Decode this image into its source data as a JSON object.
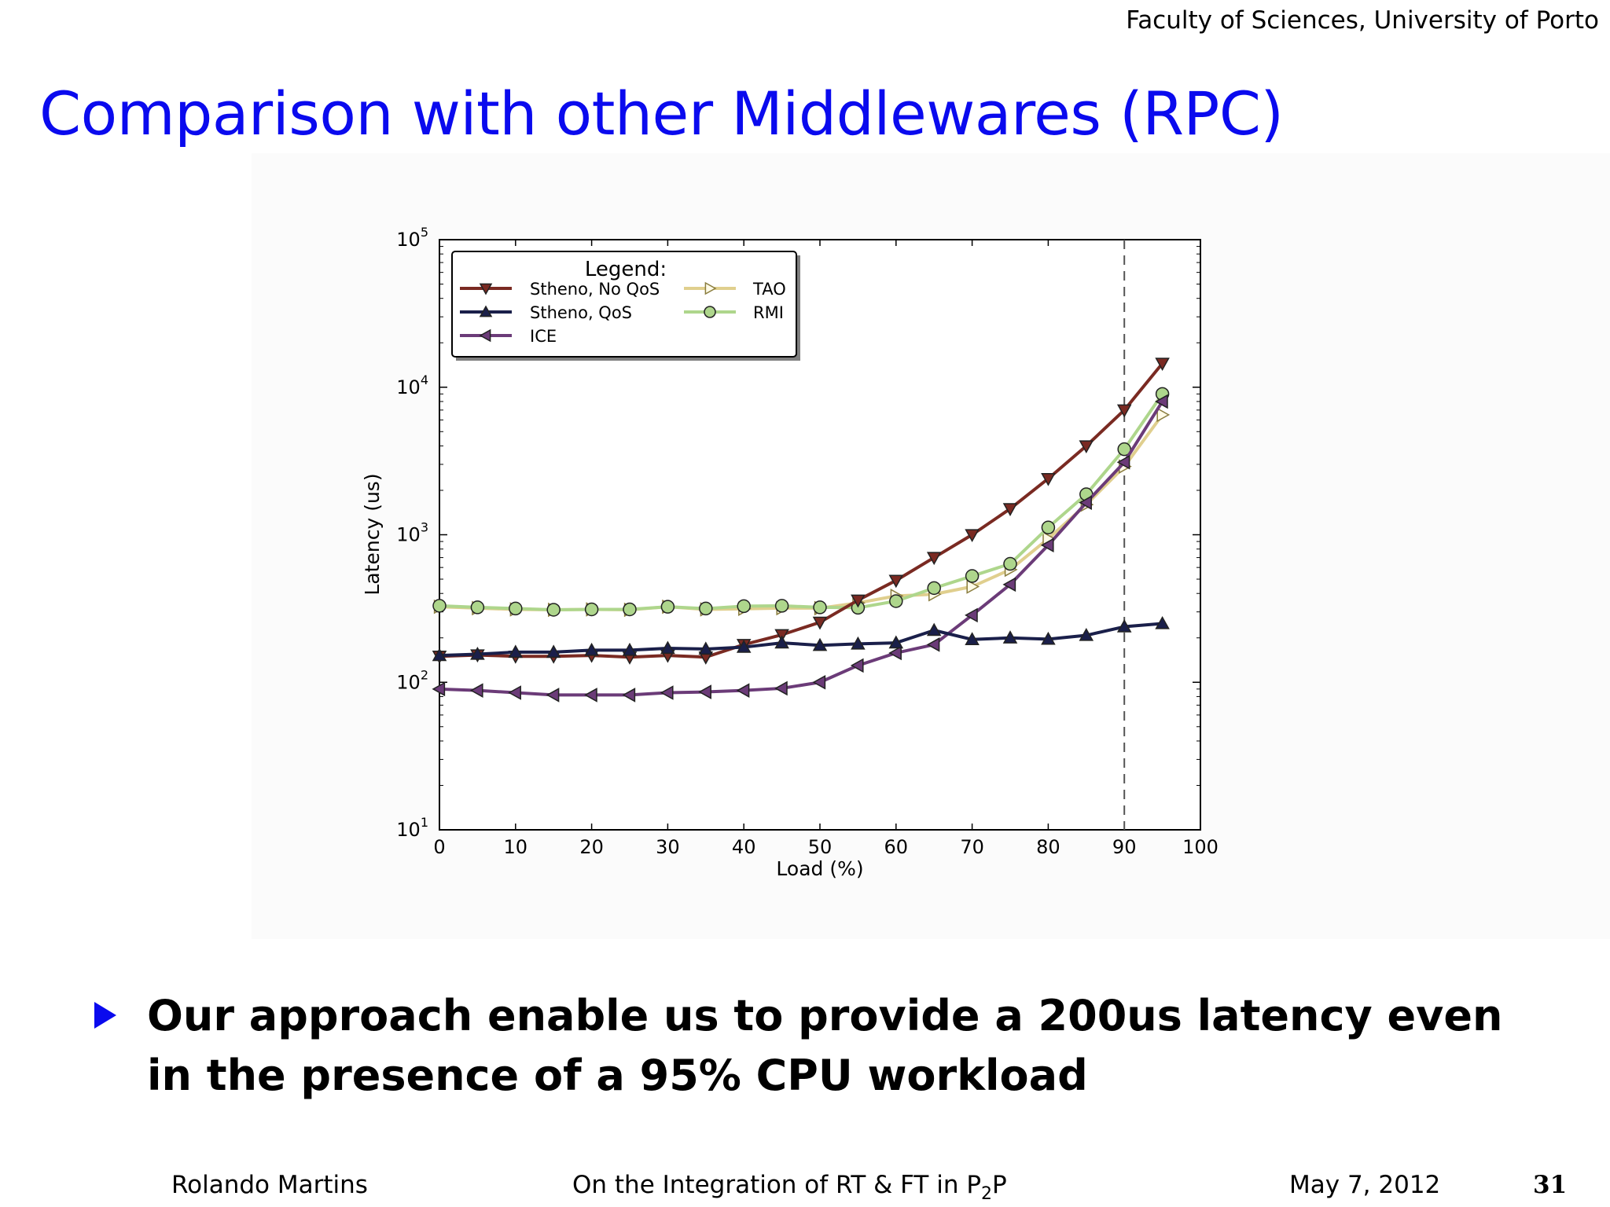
{
  "header": {
    "affiliation": "Faculty of Sciences, University of Porto",
    "title": "Comparison with other Middlewares (RPC)"
  },
  "bullet": {
    "icon": "triangle-right-icon",
    "text": "Our approach enable us to provide a 200us latency even in the presence of a 95% CPU workload"
  },
  "footer": {
    "author": "Rolando Martins",
    "talk_prefix": "On the Integration of RT & FT in P",
    "talk_subscript": "2",
    "talk_suffix": "P",
    "date": "May 7, 2012",
    "page": "31"
  },
  "colors": {
    "title_blue": "#0a0aee",
    "stheno_noqos": "#7a2a22",
    "stheno_qos": "#1a1f4a",
    "ice": "#6b3b78",
    "tao": "#e0cf8e",
    "rmi": "#aed68c"
  },
  "chart_data": {
    "type": "line",
    "xlabel": "Load (%)",
    "ylabel": "Latency (us)",
    "xlim": [
      0,
      100
    ],
    "ylim": [
      10,
      100000
    ],
    "yscale": "log",
    "x_ticks": [
      0,
      10,
      20,
      30,
      40,
      50,
      60,
      70,
      80,
      90,
      100
    ],
    "y_tick_labels": [
      {
        "base": "10",
        "exp": "1",
        "value": 10
      },
      {
        "base": "10",
        "exp": "2",
        "value": 100
      },
      {
        "base": "10",
        "exp": "3",
        "value": 1000
      },
      {
        "base": "10",
        "exp": "4",
        "value": 10000
      },
      {
        "base": "10",
        "exp": "5",
        "value": 100000
      }
    ],
    "legend": {
      "title": "Legend:",
      "position": "top-left",
      "columns": 2
    },
    "vline": {
      "x": 90,
      "style": "dashed"
    },
    "x": [
      0,
      5,
      10,
      15,
      20,
      25,
      30,
      35,
      40,
      45,
      50,
      55,
      60,
      65,
      70,
      75,
      80,
      85,
      90,
      95
    ],
    "series": [
      {
        "name": "Stheno, No QoS",
        "color": "#7a2a22",
        "marker": "triangle-down",
        "values": [
          150,
          153,
          150,
          150,
          152,
          148,
          152,
          148,
          180,
          210,
          255,
          360,
          490,
          700,
          1000,
          1500,
          2400,
          4000,
          7000,
          14500
        ]
      },
      {
        "name": "Stheno, QoS",
        "color": "#1a1f4a",
        "marker": "triangle-up",
        "values": [
          152,
          155,
          160,
          160,
          165,
          165,
          170,
          168,
          173,
          185,
          178,
          182,
          185,
          225,
          195,
          200,
          196,
          208,
          238,
          250
        ]
      },
      {
        "name": "ICE",
        "color": "#6b3b78",
        "marker": "triangle-left",
        "values": [
          90,
          88,
          85,
          82,
          82,
          82,
          85,
          86,
          88,
          91,
          100,
          130,
          158,
          180,
          285,
          460,
          850,
          1650,
          3100,
          8000
        ]
      },
      {
        "name": "TAO",
        "color": "#e0cf8e",
        "marker": "triangle-right",
        "values": [
          325,
          318,
          312,
          310,
          312,
          310,
          325,
          312,
          315,
          318,
          318,
          345,
          385,
          395,
          445,
          580,
          940,
          1600,
          2900,
          6500
        ]
      },
      {
        "name": "RMI",
        "color": "#aed68c",
        "marker": "circle",
        "values": [
          330,
          322,
          316,
          310,
          312,
          312,
          325,
          316,
          328,
          330,
          322,
          320,
          355,
          435,
          525,
          635,
          1120,
          1880,
          3800,
          9000
        ]
      }
    ]
  }
}
